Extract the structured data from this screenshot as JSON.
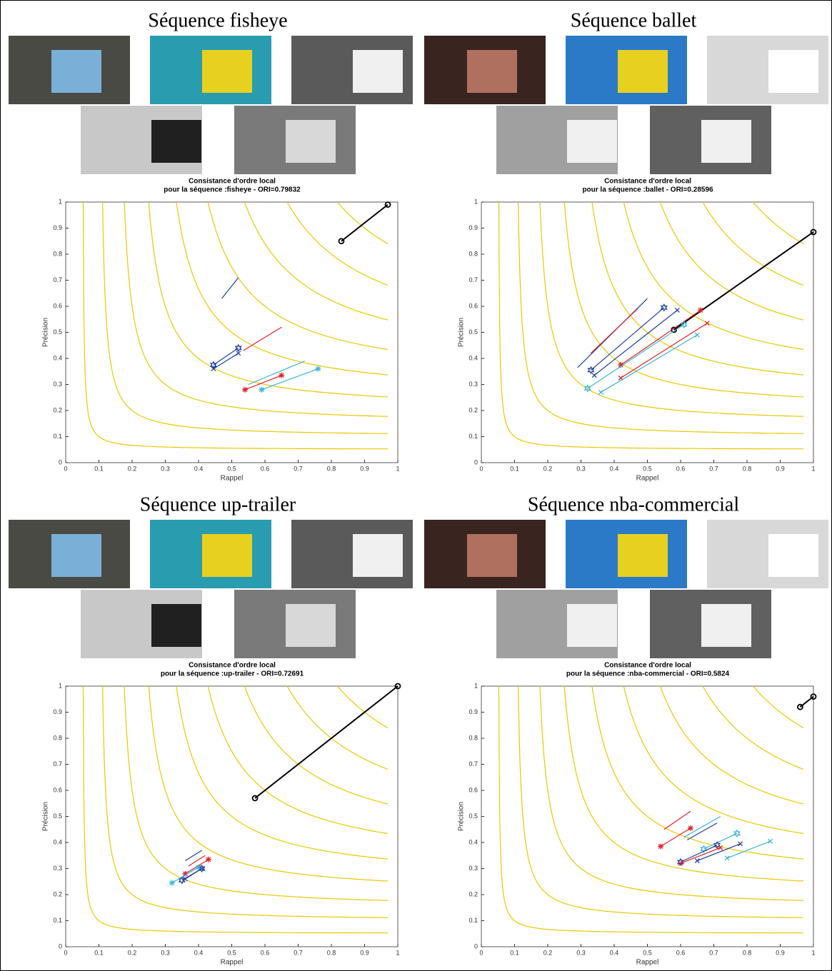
{
  "chart_data": [
    {
      "type": "line",
      "title": "Séquence fisheye",
      "plot_title": [
        "Consistance d'ordre local",
        "pour la séquence :fisheye - ORI=0.79832"
      ],
      "x_label": "Rappel",
      "y_label": "Précision",
      "xlim": [
        0,
        1
      ],
      "ylim": [
        0,
        1
      ],
      "xticks": [
        0,
        0.1,
        0.2,
        0.3,
        0.4,
        0.5,
        0.6,
        0.7,
        0.8,
        0.9,
        1
      ],
      "yticks": [
        0,
        0.1,
        0.2,
        0.3,
        0.4,
        0.5,
        0.6,
        0.7,
        0.8,
        0.9,
        1
      ],
      "iso_f": [
        0.1,
        0.2,
        0.3,
        0.4,
        0.5,
        0.6,
        0.7,
        0.8,
        0.9
      ],
      "iso_color": "#e8c800",
      "series": [
        {
          "color": "#000000",
          "marker": "o",
          "x": [
            0.83,
            0.97
          ],
          "values": [
            0.85,
            0.99
          ]
        },
        {
          "color": "#1f3f9f",
          "marker": null,
          "x": [
            0.47,
            0.52
          ],
          "values": [
            0.63,
            0.71
          ]
        },
        {
          "color": "#1f3f9f",
          "marker": "hexagram",
          "x": [
            0.445,
            0.52
          ],
          "values": [
            0.375,
            0.44
          ]
        },
        {
          "color": "#1f3f9f",
          "marker": "x",
          "x": [
            0.445,
            0.52
          ],
          "values": [
            0.36,
            0.42
          ]
        },
        {
          "color": "#e0202a",
          "marker": null,
          "x": [
            0.535,
            0.65
          ],
          "values": [
            0.43,
            0.52
          ]
        },
        {
          "color": "#e0202a",
          "marker": "*",
          "x": [
            0.54,
            0.65
          ],
          "values": [
            0.28,
            0.335
          ]
        },
        {
          "color": "#3cb4d8",
          "marker": null,
          "x": [
            0.55,
            0.72
          ],
          "values": [
            0.3,
            0.39
          ]
        },
        {
          "color": "#3cb4d8",
          "marker": "*",
          "x": [
            0.59,
            0.76
          ],
          "values": [
            0.28,
            0.36
          ]
        }
      ]
    },
    {
      "type": "line",
      "title": "Séquence ballet",
      "plot_title": [
        "Consistance d'ordre local",
        "pour la séquence :ballet - ORI=0.28596"
      ],
      "x_label": "Rappel",
      "y_label": "Précision",
      "xlim": [
        0,
        1
      ],
      "ylim": [
        0,
        1
      ],
      "xticks": [
        0,
        0.1,
        0.2,
        0.3,
        0.4,
        0.5,
        0.6,
        0.7,
        0.8,
        0.9,
        1
      ],
      "yticks": [
        0,
        0.1,
        0.2,
        0.3,
        0.4,
        0.5,
        0.6,
        0.7,
        0.8,
        0.9,
        1
      ],
      "iso_f": [
        0.1,
        0.2,
        0.3,
        0.4,
        0.5,
        0.6,
        0.7,
        0.8,
        0.9
      ],
      "iso_color": "#e8c800",
      "series": [
        {
          "color": "#000000",
          "marker": "o",
          "x": [
            0.58,
            1
          ],
          "values": [
            0.51,
            0.885
          ]
        },
        {
          "color": "#1f3f9f",
          "marker": null,
          "x": [
            0.29,
            0.5
          ],
          "values": [
            0.365,
            0.63
          ]
        },
        {
          "color": "#1f3f9f",
          "marker": "hexagram",
          "x": [
            0.33,
            0.55
          ],
          "values": [
            0.355,
            0.595
          ]
        },
        {
          "color": "#1f3f9f",
          "marker": "x",
          "x": [
            0.34,
            0.59
          ],
          "values": [
            0.335,
            0.585
          ]
        },
        {
          "color": "#e0202a",
          "marker": null,
          "x": [
            0.33,
            0.47
          ],
          "values": [
            0.42,
            0.59
          ]
        },
        {
          "color": "#e0202a",
          "marker": "*",
          "x": [
            0.42,
            0.66
          ],
          "values": [
            0.375,
            0.585
          ]
        },
        {
          "color": "#e0202a",
          "marker": "x",
          "x": [
            0.42,
            0.68
          ],
          "values": [
            0.325,
            0.535
          ]
        },
        {
          "color": "#3cb4d8",
          "marker": "hexagram",
          "x": [
            0.32,
            0.61
          ],
          "values": [
            0.285,
            0.53
          ]
        },
        {
          "color": "#3cb4d8",
          "marker": "x",
          "x": [
            0.36,
            0.65
          ],
          "values": [
            0.27,
            0.49
          ]
        }
      ]
    },
    {
      "type": "line",
      "title": "Séquence up-trailer",
      "plot_title": [
        "Consistance d'ordre local",
        "pour la séquence :up-trailer - ORI=0.72691"
      ],
      "x_label": "Rappel",
      "y_label": "Précision",
      "xlim": [
        0,
        1
      ],
      "ylim": [
        0,
        1
      ],
      "xticks": [
        0,
        0.1,
        0.2,
        0.3,
        0.4,
        0.5,
        0.6,
        0.7,
        0.8,
        0.9,
        1
      ],
      "yticks": [
        0,
        0.1,
        0.2,
        0.3,
        0.4,
        0.5,
        0.6,
        0.7,
        0.8,
        0.9,
        1
      ],
      "iso_f": [
        0.1,
        0.2,
        0.3,
        0.4,
        0.5,
        0.6,
        0.7,
        0.8,
        0.9
      ],
      "iso_color": "#e8c800",
      "series": [
        {
          "color": "#000000",
          "marker": "o",
          "x": [
            0.57,
            1
          ],
          "values": [
            0.57,
            1
          ]
        },
        {
          "color": "#1f3f9f",
          "marker": null,
          "x": [
            0.36,
            0.41
          ],
          "values": [
            0.33,
            0.37
          ]
        },
        {
          "color": "#e0202a",
          "marker": null,
          "x": [
            0.37,
            0.42
          ],
          "values": [
            0.31,
            0.35
          ]
        },
        {
          "color": "#e0202a",
          "marker": "*",
          "x": [
            0.36,
            0.43
          ],
          "values": [
            0.28,
            0.335
          ]
        },
        {
          "color": "#1f3f9f",
          "marker": "hexagram",
          "x": [
            0.35,
            0.41
          ],
          "values": [
            0.255,
            0.3
          ]
        },
        {
          "color": "#3cb4d8",
          "marker": "*",
          "x": [
            0.32,
            0.4
          ],
          "values": [
            0.245,
            0.305
          ]
        },
        {
          "color": "#1f3f9f",
          "marker": "x",
          "x": [
            0.36,
            0.41
          ],
          "values": [
            0.26,
            0.3
          ]
        }
      ]
    },
    {
      "type": "line",
      "title": "Séquence nba-commercial",
      "plot_title": [
        "Consistance d'ordre local",
        "pour la séquence :nba-commercial - ORI=0.5824"
      ],
      "x_label": "Rappel",
      "y_label": "Précision",
      "xlim": [
        0,
        1
      ],
      "ylim": [
        0,
        1
      ],
      "xticks": [
        0,
        0.1,
        0.2,
        0.3,
        0.4,
        0.5,
        0.6,
        0.7,
        0.8,
        0.9,
        1
      ],
      "yticks": [
        0,
        0.1,
        0.2,
        0.3,
        0.4,
        0.5,
        0.6,
        0.7,
        0.8,
        0.9,
        1
      ],
      "iso_f": [
        0.1,
        0.2,
        0.3,
        0.4,
        0.5,
        0.6,
        0.7,
        0.8,
        0.9
      ],
      "iso_color": "#e8c800",
      "series": [
        {
          "color": "#000000",
          "marker": "o",
          "x": [
            0.96,
            1
          ],
          "values": [
            0.92,
            0.96
          ]
        },
        {
          "color": "#e0202a",
          "marker": null,
          "x": [
            0.55,
            0.63
          ],
          "values": [
            0.45,
            0.52
          ]
        },
        {
          "color": "#e0202a",
          "marker": "*",
          "x": [
            0.54,
            0.63
          ],
          "values": [
            0.385,
            0.455
          ]
        },
        {
          "color": "#1f3f9f",
          "marker": null,
          "x": [
            0.62,
            0.71
          ],
          "values": [
            0.41,
            0.475
          ]
        },
        {
          "color": "#3cb4d8",
          "marker": null,
          "x": [
            0.61,
            0.72
          ],
          "values": [
            0.42,
            0.5
          ]
        },
        {
          "color": "#3cb4d8",
          "marker": "hexagram",
          "x": [
            0.67,
            0.77
          ],
          "values": [
            0.375,
            0.435
          ]
        },
        {
          "color": "#1f3f9f",
          "marker": "hexagram",
          "x": [
            0.6,
            0.71
          ],
          "values": [
            0.325,
            0.39
          ]
        },
        {
          "color": "#e0202a",
          "marker": "x",
          "x": [
            0.6,
            0.72
          ],
          "values": [
            0.32,
            0.38
          ]
        },
        {
          "color": "#1f3f9f",
          "marker": "x",
          "x": [
            0.65,
            0.78
          ],
          "values": [
            0.33,
            0.395
          ]
        },
        {
          "color": "#3cb4d8",
          "marker": "x",
          "x": [
            0.74,
            0.87
          ],
          "values": [
            0.34,
            0.405
          ]
        }
      ]
    }
  ]
}
